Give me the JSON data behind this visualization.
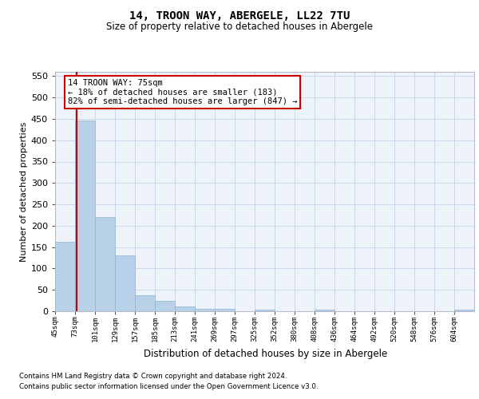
{
  "title": "14, TROON WAY, ABERGELE, LL22 7TU",
  "subtitle": "Size of property relative to detached houses in Abergele",
  "xlabel": "Distribution of detached houses by size in Abergele",
  "ylabel": "Number of detached properties",
  "bar_labels": [
    "45sqm",
    "73sqm",
    "101sqm",
    "129sqm",
    "157sqm",
    "185sqm",
    "213sqm",
    "241sqm",
    "269sqm",
    "297sqm",
    "325sqm",
    "352sqm",
    "380sqm",
    "408sqm",
    "436sqm",
    "464sqm",
    "492sqm",
    "520sqm",
    "548sqm",
    "576sqm",
    "604sqm"
  ],
  "bar_values": [
    163,
    447,
    220,
    130,
    37,
    25,
    11,
    6,
    5,
    0,
    4,
    0,
    0,
    4,
    0,
    0,
    0,
    0,
    0,
    0,
    4
  ],
  "bar_color": "#b8d0e8",
  "bar_edge_color": "#90b4d0",
  "grid_color": "#c8d8ec",
  "background_color": "#eef3f9",
  "property_line_color": "#cc0000",
  "annotation_text": "14 TROON WAY: 75sqm\n← 18% of detached houses are smaller (183)\n82% of semi-detached houses are larger (847) →",
  "annotation_box_edgecolor": "#cc0000",
  "ylim_max": 560,
  "yticks": [
    0,
    50,
    100,
    150,
    200,
    250,
    300,
    350,
    400,
    450,
    500,
    550
  ],
  "footnote1": "Contains HM Land Registry data © Crown copyright and database right 2024.",
  "footnote2": "Contains public sector information licensed under the Open Government Licence v3.0."
}
